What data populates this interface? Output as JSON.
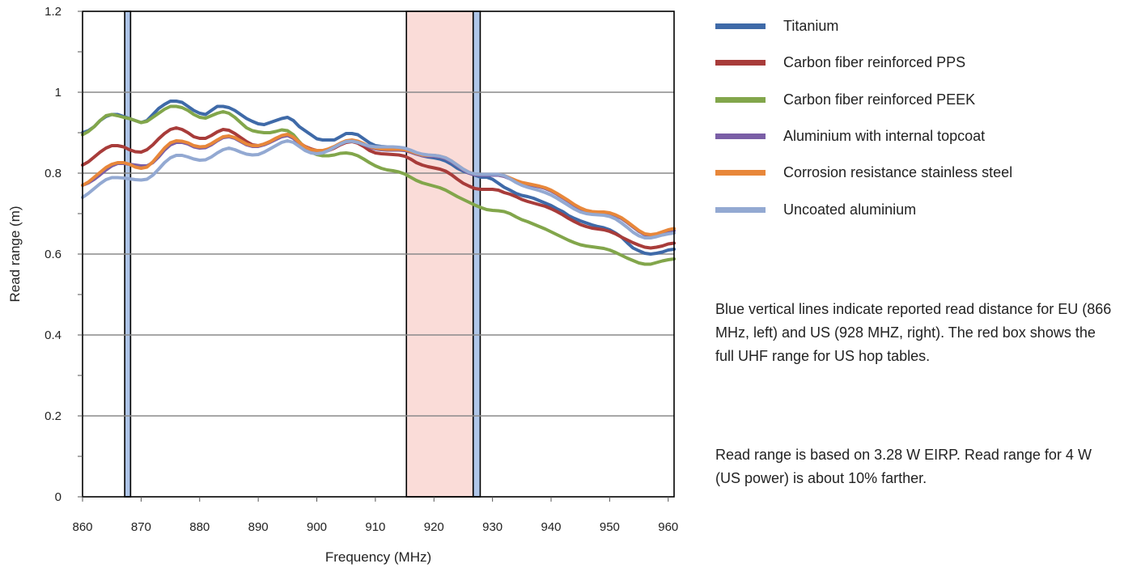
{
  "chart_data": {
    "type": "line",
    "xlabel": "Frequency (MHz)",
    "ylabel": "Read range (m)",
    "xlim": [
      860,
      961
    ],
    "ylim": [
      0,
      1.2
    ],
    "x_ticks": [
      "860",
      "870",
      "880",
      "890",
      "900",
      "910",
      "920",
      "930",
      "940",
      "950",
      "960"
    ],
    "y_ticks": [
      "0",
      "0.2",
      "0.4",
      "0.6",
      "0.8",
      "1",
      "1.2"
    ],
    "grid": "horizontal",
    "legend_position": "right",
    "x": [
      860,
      861,
      862,
      863,
      864,
      865,
      866,
      867,
      868,
      869,
      870,
      871,
      872,
      873,
      874,
      875,
      876,
      877,
      878,
      879,
      880,
      881,
      882,
      883,
      884,
      885,
      886,
      887,
      888,
      889,
      890,
      891,
      892,
      893,
      894,
      895,
      896,
      897,
      898,
      899,
      900,
      901,
      902,
      903,
      904,
      905,
      906,
      907,
      908,
      909,
      910,
      911,
      912,
      913,
      914,
      915,
      916,
      917,
      918,
      919,
      920,
      921,
      922,
      923,
      924,
      925,
      926,
      927,
      928,
      929,
      930,
      931,
      932,
      933,
      934,
      935,
      936,
      937,
      938,
      939,
      940,
      941,
      942,
      943,
      944,
      945,
      946,
      947,
      948,
      949,
      950,
      951,
      952,
      953,
      954,
      955,
      956,
      957,
      958,
      959,
      960,
      961
    ],
    "series": [
      {
        "name": "Titanium",
        "color": "#3f6aa8",
        "values": [
          0.9,
          0.905,
          0.915,
          0.93,
          0.94,
          0.945,
          0.945,
          0.94,
          0.935,
          0.93,
          0.925,
          0.93,
          0.945,
          0.96,
          0.97,
          0.978,
          0.978,
          0.975,
          0.965,
          0.955,
          0.948,
          0.945,
          0.955,
          0.965,
          0.965,
          0.962,
          0.955,
          0.945,
          0.935,
          0.928,
          0.922,
          0.92,
          0.925,
          0.93,
          0.935,
          0.938,
          0.93,
          0.915,
          0.905,
          0.895,
          0.885,
          0.882,
          0.882,
          0.882,
          0.89,
          0.898,
          0.898,
          0.895,
          0.885,
          0.875,
          0.868,
          0.866,
          0.865,
          0.864,
          0.863,
          0.862,
          0.855,
          0.848,
          0.843,
          0.84,
          0.838,
          0.835,
          0.83,
          0.822,
          0.812,
          0.805,
          0.8,
          0.795,
          0.79,
          0.79,
          0.785,
          0.775,
          0.765,
          0.758,
          0.75,
          0.745,
          0.742,
          0.738,
          0.732,
          0.726,
          0.72,
          0.712,
          0.705,
          0.695,
          0.688,
          0.682,
          0.677,
          0.672,
          0.668,
          0.665,
          0.66,
          0.652,
          0.642,
          0.628,
          0.615,
          0.608,
          0.602,
          0.6,
          0.602,
          0.605,
          0.61,
          0.612
        ]
      },
      {
        "name": "Carbon fiber reinforced PPS",
        "color": "#a83c3a",
        "values": [
          0.82,
          0.828,
          0.84,
          0.852,
          0.862,
          0.868,
          0.868,
          0.865,
          0.858,
          0.853,
          0.852,
          0.858,
          0.87,
          0.885,
          0.898,
          0.908,
          0.912,
          0.908,
          0.9,
          0.89,
          0.886,
          0.886,
          0.893,
          0.902,
          0.908,
          0.906,
          0.898,
          0.888,
          0.878,
          0.87,
          0.868,
          0.872,
          0.878,
          0.886,
          0.892,
          0.895,
          0.888,
          0.875,
          0.866,
          0.86,
          0.856,
          0.854,
          0.856,
          0.862,
          0.87,
          0.876,
          0.878,
          0.874,
          0.866,
          0.856,
          0.85,
          0.848,
          0.847,
          0.846,
          0.845,
          0.842,
          0.835,
          0.826,
          0.82,
          0.816,
          0.813,
          0.81,
          0.805,
          0.796,
          0.785,
          0.775,
          0.768,
          0.762,
          0.76,
          0.76,
          0.76,
          0.758,
          0.752,
          0.748,
          0.742,
          0.735,
          0.73,
          0.726,
          0.722,
          0.718,
          0.712,
          0.705,
          0.697,
          0.688,
          0.68,
          0.673,
          0.668,
          0.664,
          0.662,
          0.66,
          0.656,
          0.65,
          0.642,
          0.635,
          0.628,
          0.622,
          0.617,
          0.615,
          0.617,
          0.62,
          0.625,
          0.627
        ]
      },
      {
        "name": "Carbon fiber reinforced PEEK",
        "color": "#82a64b",
        "values": [
          0.895,
          0.903,
          0.915,
          0.93,
          0.942,
          0.945,
          0.942,
          0.938,
          0.935,
          0.93,
          0.925,
          0.928,
          0.938,
          0.948,
          0.958,
          0.965,
          0.965,
          0.962,
          0.955,
          0.945,
          0.938,
          0.936,
          0.942,
          0.948,
          0.952,
          0.948,
          0.938,
          0.925,
          0.912,
          0.905,
          0.902,
          0.9,
          0.9,
          0.903,
          0.907,
          0.905,
          0.895,
          0.878,
          0.862,
          0.852,
          0.846,
          0.843,
          0.843,
          0.845,
          0.849,
          0.85,
          0.848,
          0.843,
          0.835,
          0.826,
          0.818,
          0.812,
          0.808,
          0.806,
          0.803,
          0.798,
          0.79,
          0.782,
          0.776,
          0.772,
          0.768,
          0.764,
          0.758,
          0.75,
          0.742,
          0.735,
          0.728,
          0.721,
          0.715,
          0.71,
          0.708,
          0.707,
          0.705,
          0.7,
          0.692,
          0.685,
          0.68,
          0.674,
          0.668,
          0.662,
          0.655,
          0.648,
          0.641,
          0.634,
          0.628,
          0.623,
          0.62,
          0.618,
          0.616,
          0.614,
          0.61,
          0.604,
          0.597,
          0.59,
          0.584,
          0.578,
          0.575,
          0.575,
          0.579,
          0.583,
          0.586,
          0.588
        ]
      },
      {
        "name": "Aluminium with internal topcoat",
        "color": "#7a5ea6",
        "values": [
          0.77,
          0.776,
          0.785,
          0.796,
          0.808,
          0.818,
          0.824,
          0.824,
          0.822,
          0.82,
          0.818,
          0.818,
          0.826,
          0.84,
          0.857,
          0.87,
          0.876,
          0.876,
          0.872,
          0.865,
          0.862,
          0.863,
          0.87,
          0.88,
          0.888,
          0.89,
          0.886,
          0.878,
          0.87,
          0.866,
          0.866,
          0.87,
          0.876,
          0.883,
          0.89,
          0.893,
          0.886,
          0.873,
          0.862,
          0.856,
          0.854,
          0.854,
          0.858,
          0.864,
          0.872,
          0.878,
          0.88,
          0.877,
          0.871,
          0.864,
          0.86,
          0.858,
          0.857,
          0.857,
          0.857,
          0.856,
          0.852,
          0.847,
          0.843,
          0.842,
          0.842,
          0.84,
          0.836,
          0.828,
          0.818,
          0.808,
          0.8,
          0.796,
          0.795,
          0.795,
          0.795,
          0.795,
          0.792,
          0.786,
          0.78,
          0.775,
          0.772,
          0.769,
          0.766,
          0.762,
          0.756,
          0.748,
          0.739,
          0.73,
          0.72,
          0.712,
          0.706,
          0.703,
          0.702,
          0.702,
          0.7,
          0.695,
          0.688,
          0.678,
          0.667,
          0.656,
          0.648,
          0.646,
          0.648,
          0.652,
          0.656,
          0.658
        ]
      },
      {
        "name": "Corrosion resistance stainless steel",
        "color": "#e8873a",
        "values": [
          0.77,
          0.778,
          0.79,
          0.802,
          0.814,
          0.822,
          0.826,
          0.826,
          0.822,
          0.815,
          0.812,
          0.815,
          0.828,
          0.845,
          0.862,
          0.875,
          0.88,
          0.879,
          0.875,
          0.868,
          0.865,
          0.866,
          0.873,
          0.882,
          0.89,
          0.892,
          0.888,
          0.88,
          0.872,
          0.868,
          0.868,
          0.872,
          0.878,
          0.886,
          0.893,
          0.896,
          0.889,
          0.876,
          0.865,
          0.858,
          0.856,
          0.856,
          0.86,
          0.866,
          0.874,
          0.88,
          0.882,
          0.879,
          0.873,
          0.866,
          0.862,
          0.86,
          0.859,
          0.859,
          0.859,
          0.858,
          0.854,
          0.849,
          0.845,
          0.844,
          0.844,
          0.842,
          0.838,
          0.83,
          0.82,
          0.81,
          0.802,
          0.798,
          0.797,
          0.797,
          0.797,
          0.797,
          0.794,
          0.788,
          0.782,
          0.777,
          0.774,
          0.771,
          0.768,
          0.764,
          0.758,
          0.75,
          0.741,
          0.732,
          0.722,
          0.714,
          0.708,
          0.705,
          0.704,
          0.704,
          0.702,
          0.697,
          0.69,
          0.68,
          0.669,
          0.658,
          0.65,
          0.648,
          0.65,
          0.655,
          0.66,
          0.663
        ]
      },
      {
        "name": "Uncoated aluminium",
        "color": "#93a9d2",
        "values": [
          0.74,
          0.75,
          0.762,
          0.774,
          0.784,
          0.789,
          0.789,
          0.788,
          0.786,
          0.784,
          0.783,
          0.785,
          0.795,
          0.81,
          0.826,
          0.838,
          0.844,
          0.844,
          0.84,
          0.835,
          0.832,
          0.833,
          0.84,
          0.85,
          0.858,
          0.862,
          0.858,
          0.852,
          0.847,
          0.845,
          0.846,
          0.852,
          0.86,
          0.868,
          0.876,
          0.88,
          0.876,
          0.866,
          0.856,
          0.85,
          0.848,
          0.85,
          0.856,
          0.864,
          0.872,
          0.878,
          0.879,
          0.876,
          0.871,
          0.867,
          0.865,
          0.865,
          0.865,
          0.865,
          0.864,
          0.862,
          0.857,
          0.851,
          0.847,
          0.845,
          0.844,
          0.842,
          0.838,
          0.83,
          0.82,
          0.81,
          0.802,
          0.798,
          0.797,
          0.797,
          0.797,
          0.797,
          0.794,
          0.786,
          0.777,
          0.77,
          0.765,
          0.761,
          0.757,
          0.752,
          0.746,
          0.738,
          0.729,
          0.72,
          0.711,
          0.704,
          0.7,
          0.698,
          0.697,
          0.696,
          0.693,
          0.687,
          0.677,
          0.666,
          0.654,
          0.645,
          0.64,
          0.64,
          0.643,
          0.647,
          0.65,
          0.652
        ]
      }
    ],
    "vertical_bands": [
      {
        "x_min": 867.2,
        "x_max": 868.2,
        "color": "#aec5e8"
      },
      {
        "x_min": 915.3,
        "x_max": 926.7,
        "color": "#fadcd8"
      },
      {
        "x_min": 926.7,
        "x_max": 927.9,
        "color": "#aec5e8"
      }
    ]
  },
  "notes": [
    "Blue vertical lines indicate reported read distance for EU (866 MHz, left) and US (928 MHZ, right). The red box shows the full UHF range for US hop tables.",
    "Read range is based on 3.28 W EIRP.  Read range for 4 W (US power) is about 10% farther."
  ]
}
